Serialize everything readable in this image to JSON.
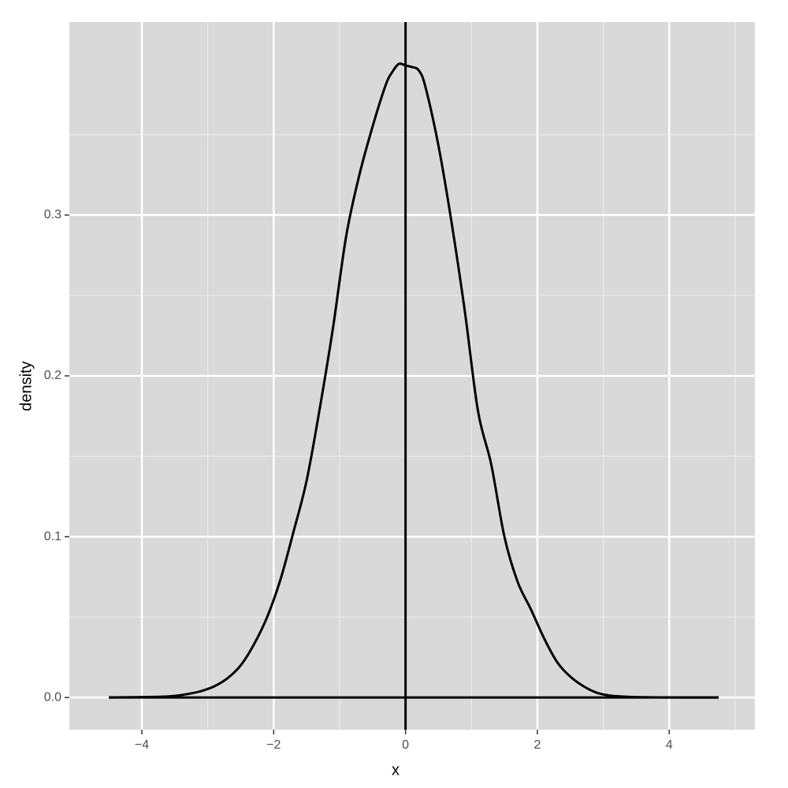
{
  "chart_data": {
    "type": "line",
    "title": "",
    "xlabel": "x",
    "ylabel": "density",
    "xlim": [
      -5.1,
      5.3
    ],
    "ylim": [
      -0.02,
      0.42
    ],
    "x_ticks": [
      -4,
      -2,
      0,
      2,
      4
    ],
    "x_tick_labels": [
      "−4",
      "−2",
      "0",
      "2",
      "4"
    ],
    "y_ticks": [
      0.0,
      0.1,
      0.2,
      0.3
    ],
    "y_tick_labels": [
      "0.0",
      "0.1",
      "0.2",
      "0.3"
    ],
    "grid": true,
    "legend": "none",
    "colors": {
      "panel_background": "#d9d9d9",
      "grid_major": "#ffffff",
      "grid_minor": "#ebebeb",
      "curve": "#000000",
      "reference_lines": "#000000",
      "tick_text": "#4d4d4d"
    },
    "reference_lines": {
      "vertical_x": 0,
      "horizontal_y": 0
    },
    "series": [
      {
        "x": [
          -4.5,
          -4.0,
          -3.7,
          -3.5,
          -3.3,
          -3.1,
          -2.9,
          -2.7,
          -2.5,
          -2.3,
          -2.1,
          -1.9,
          -1.7,
          -1.5,
          -1.3,
          -1.1,
          -0.9,
          -0.7,
          -0.5,
          -0.3,
          -0.2,
          -0.1,
          0.0,
          0.1,
          0.2,
          0.3,
          0.5,
          0.7,
          0.9,
          1.1,
          1.3,
          1.5,
          1.7,
          1.9,
          2.1,
          2.3,
          2.5,
          2.7,
          2.9,
          3.1,
          3.3,
          3.5,
          3.8,
          4.2,
          4.75
        ],
        "y": [
          0.0,
          0.0003,
          0.0005,
          0.001,
          0.0022,
          0.004,
          0.007,
          0.012,
          0.02,
          0.033,
          0.05,
          0.073,
          0.103,
          0.135,
          0.18,
          0.23,
          0.287,
          0.325,
          0.355,
          0.381,
          0.389,
          0.394,
          0.393,
          0.392,
          0.39,
          0.38,
          0.343,
          0.295,
          0.24,
          0.178,
          0.145,
          0.1,
          0.072,
          0.055,
          0.037,
          0.022,
          0.013,
          0.007,
          0.003,
          0.0012,
          0.0006,
          0.0003,
          0.0001,
          0.0,
          0.0
        ]
      }
    ]
  }
}
